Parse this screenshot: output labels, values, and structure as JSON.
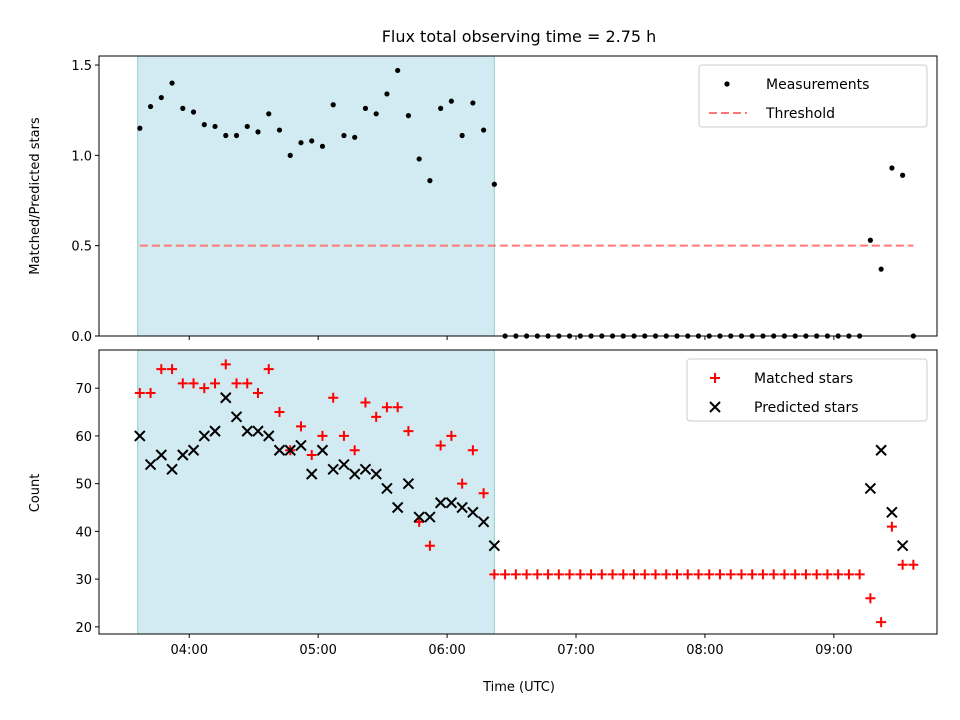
{
  "chart_data": [
    {
      "type": "scatter",
      "title": "Flux total observing time = 2.75 h",
      "xlabel": "",
      "ylabel": "Matched/Predicted stars",
      "x_ticks": [
        "04:00",
        "05:00",
        "06:00",
        "07:00",
        "08:00",
        "09:00"
      ],
      "y_ticks": [
        "0.0",
        "0.5",
        "1.0",
        "1.5"
      ],
      "ylim": [
        0,
        1.55
      ],
      "grid": false,
      "legend": "top-right",
      "shaded_interval": {
        "start": "03:36",
        "end": "06:22",
        "color": "#add8e6"
      },
      "series": [
        {
          "name": "Measurements",
          "marker": "dot",
          "color": "#000000",
          "x": [
            "03:37",
            "03:42",
            "03:47",
            "03:52",
            "03:57",
            "04:02",
            "04:07",
            "04:12",
            "04:17",
            "04:22",
            "04:27",
            "04:32",
            "04:37",
            "04:42",
            "04:47",
            "04:52",
            "04:57",
            "05:02",
            "05:07",
            "05:12",
            "05:17",
            "05:22",
            "05:27",
            "05:32",
            "05:37",
            "05:42",
            "05:47",
            "05:52",
            "05:57",
            "06:02",
            "06:07",
            "06:12",
            "06:17",
            "06:22",
            "06:27",
            "06:32",
            "06:37",
            "06:42",
            "06:47",
            "06:52",
            "06:57",
            "07:02",
            "07:07",
            "07:12",
            "07:17",
            "07:22",
            "07:27",
            "07:32",
            "07:37",
            "07:42",
            "07:47",
            "07:52",
            "07:57",
            "08:02",
            "08:07",
            "08:12",
            "08:17",
            "08:22",
            "08:27",
            "08:32",
            "08:37",
            "08:42",
            "08:47",
            "08:52",
            "08:57",
            "09:02",
            "09:07",
            "09:12",
            "09:17",
            "09:22",
            "09:27",
            "09:32",
            "09:37"
          ],
          "y": [
            1.15,
            1.27,
            1.32,
            1.4,
            1.26,
            1.24,
            1.17,
            1.16,
            1.11,
            1.11,
            1.16,
            1.13,
            1.23,
            1.14,
            1.0,
            1.07,
            1.08,
            1.05,
            1.28,
            1.11,
            1.1,
            1.26,
            1.23,
            1.34,
            1.47,
            1.22,
            0.98,
            0.86,
            1.26,
            1.3,
            1.11,
            1.29,
            1.14,
            0.84,
            0,
            0,
            0,
            0,
            0,
            0,
            0,
            0,
            0,
            0,
            0,
            0,
            0,
            0,
            0,
            0,
            0,
            0,
            0,
            0,
            0,
            0,
            0,
            0,
            0,
            0,
            0,
            0,
            0,
            0,
            0,
            0,
            0,
            0,
            0.53,
            0.37,
            0.93,
            0.89,
            0
          ]
        },
        {
          "name": "Threshold",
          "style": "dashed",
          "color": "#ff7777",
          "x": [
            "03:37",
            "09:37"
          ],
          "y": [
            0.5,
            0.5
          ]
        }
      ]
    },
    {
      "type": "scatter",
      "title": "",
      "xlabel": "Time (UTC)",
      "ylabel": "Count",
      "x_ticks": [
        "04:00",
        "05:00",
        "06:00",
        "07:00",
        "08:00",
        "09:00"
      ],
      "y_ticks": [
        "20",
        "30",
        "40",
        "50",
        "60",
        "70"
      ],
      "ylim": [
        18.5,
        78
      ],
      "grid": false,
      "legend": "top-right",
      "shaded_interval": {
        "start": "03:36",
        "end": "06:22",
        "color": "#add8e6"
      },
      "series": [
        {
          "name": "Matched stars",
          "marker": "plus",
          "color": "#ff0000",
          "x": [
            "03:37",
            "03:42",
            "03:47",
            "03:52",
            "03:57",
            "04:02",
            "04:07",
            "04:12",
            "04:17",
            "04:22",
            "04:27",
            "04:32",
            "04:37",
            "04:42",
            "04:47",
            "04:52",
            "04:57",
            "05:02",
            "05:07",
            "05:12",
            "05:17",
            "05:22",
            "05:27",
            "05:32",
            "05:37",
            "05:42",
            "05:47",
            "05:52",
            "05:57",
            "06:02",
            "06:07",
            "06:12",
            "06:17",
            "06:22",
            "06:27",
            "06:32",
            "06:37",
            "06:42",
            "06:47",
            "06:52",
            "06:57",
            "07:02",
            "07:07",
            "07:12",
            "07:17",
            "07:22",
            "07:27",
            "07:32",
            "07:37",
            "07:42",
            "07:47",
            "07:52",
            "07:57",
            "08:02",
            "08:07",
            "08:12",
            "08:17",
            "08:22",
            "08:27",
            "08:32",
            "08:37",
            "08:42",
            "08:47",
            "08:52",
            "08:57",
            "09:02",
            "09:07",
            "09:12",
            "09:17",
            "09:22",
            "09:27",
            "09:32",
            "09:37"
          ],
          "y": [
            69,
            69,
            74,
            74,
            71,
            71,
            70,
            71,
            75,
            71,
            71,
            69,
            74,
            65,
            57,
            62,
            56,
            60,
            68,
            60,
            57,
            67,
            64,
            66,
            66,
            61,
            42,
            37,
            58,
            60,
            50,
            57,
            48,
            31,
            31,
            31,
            31,
            31,
            31,
            31,
            31,
            31,
            31,
            31,
            31,
            31,
            31,
            31,
            31,
            31,
            31,
            31,
            31,
            31,
            31,
            31,
            31,
            31,
            31,
            31,
            31,
            31,
            31,
            31,
            31,
            31,
            31,
            31,
            26,
            21,
            41,
            33,
            33
          ]
        },
        {
          "name": "Predicted stars",
          "marker": "x",
          "color": "#000000",
          "x": [
            "03:37",
            "03:42",
            "03:47",
            "03:52",
            "03:57",
            "04:02",
            "04:07",
            "04:12",
            "04:17",
            "04:22",
            "04:27",
            "04:32",
            "04:37",
            "04:42",
            "04:47",
            "04:52",
            "04:57",
            "05:02",
            "05:07",
            "05:12",
            "05:17",
            "05:22",
            "05:27",
            "05:32",
            "05:37",
            "05:42",
            "05:47",
            "05:52",
            "05:57",
            "06:02",
            "06:07",
            "06:12",
            "06:17",
            "06:22",
            "09:17",
            "09:22",
            "09:27",
            "09:32"
          ],
          "y": [
            60,
            54,
            56,
            53,
            56,
            57,
            60,
            61,
            68,
            64,
            61,
            61,
            60,
            57,
            57,
            58,
            52,
            57,
            53,
            54,
            52,
            53,
            52,
            49,
            45,
            50,
            43,
            43,
            46,
            46,
            45,
            44,
            42,
            37,
            49,
            57,
            44,
            37
          ]
        }
      ]
    }
  ]
}
